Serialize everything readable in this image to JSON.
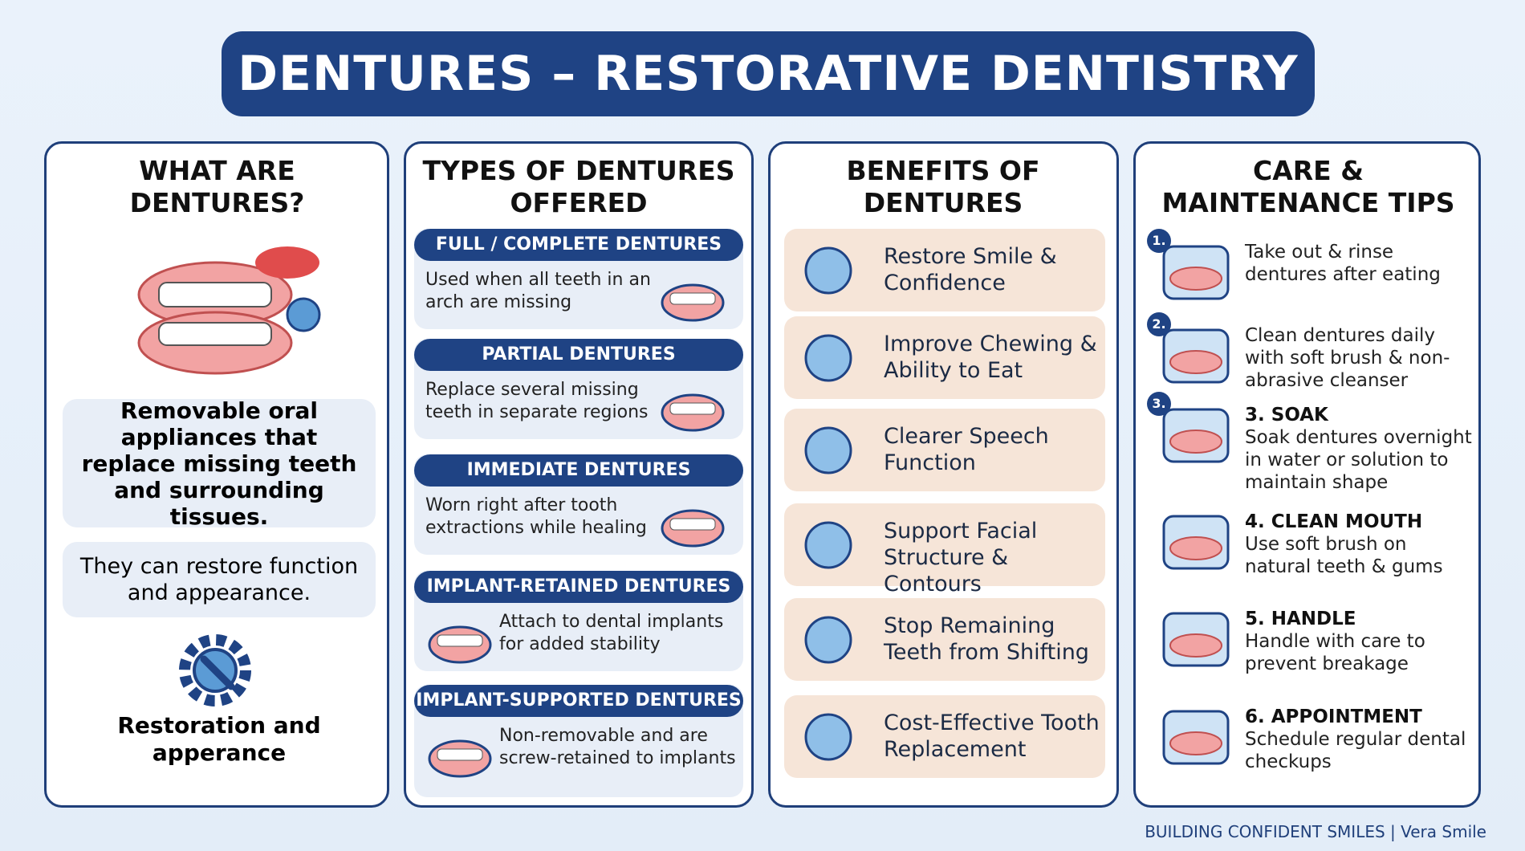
{
  "title": "DENTURES – RESTORATIVE DENTISTRY",
  "what": {
    "heading": "WHAT ARE DENTURES?",
    "definition": "Removable oral appliances that replace missing teeth and surrounding tissues.",
    "note": "They can restore function and appearance.",
    "caption": "Restoration and apperance"
  },
  "types": {
    "heading": "TYPES OF DENTURES OFFERED",
    "items": [
      {
        "name": "FULL / COMPLETE DENTURES",
        "text": "Used when all teeth in an arch are missing"
      },
      {
        "name": "PARTIAL DENTURES",
        "text": "Replace several missing teeth in separate regions"
      },
      {
        "name": "IMMEDIATE DENTURES",
        "text": "Worn right after tooth extractions while healing"
      },
      {
        "name": "IMPLANT-RETAINED DENTURES",
        "text": "Attach to dental implants for added stability"
      },
      {
        "name": "IMPLANT-SUPPORTED DENTURES",
        "text": "Non-removable and are screw-retained to implants"
      }
    ]
  },
  "benefits": {
    "heading": "BENEFITS OF DENTURES",
    "items": [
      "Restore Smile & Confidence",
      "Improve Chewing & Ability to Eat",
      "Clearer Speech Function",
      "Support Facial Structure & Contours",
      "Stop Remaining Teeth from Shifting",
      "Cost-Effective Tooth Replacement"
    ]
  },
  "care": {
    "heading": "CARE & MAINTENANCE TIPS",
    "items": [
      {
        "badge": "1.",
        "text": "Take out & rinse dentures after eating"
      },
      {
        "badge": "2.",
        "text": "Clean dentures daily with soft brush & non-abrasive cleanser"
      },
      {
        "badge": "3.",
        "title": "3. SOAK",
        "text": "Soak dentures overnight in water or solution to maintain shape"
      },
      {
        "title": "4. CLEAN MOUTH",
        "text": "Use soft brush on natural teeth & gums"
      },
      {
        "title": "5. HANDLE",
        "text": "Handle with care to prevent breakage"
      },
      {
        "title": "6. APPOINTMENT",
        "text": "Schedule regular dental checkups"
      }
    ]
  },
  "footer": "BUILDING CONFIDENT SMILES | Vera Smile"
}
